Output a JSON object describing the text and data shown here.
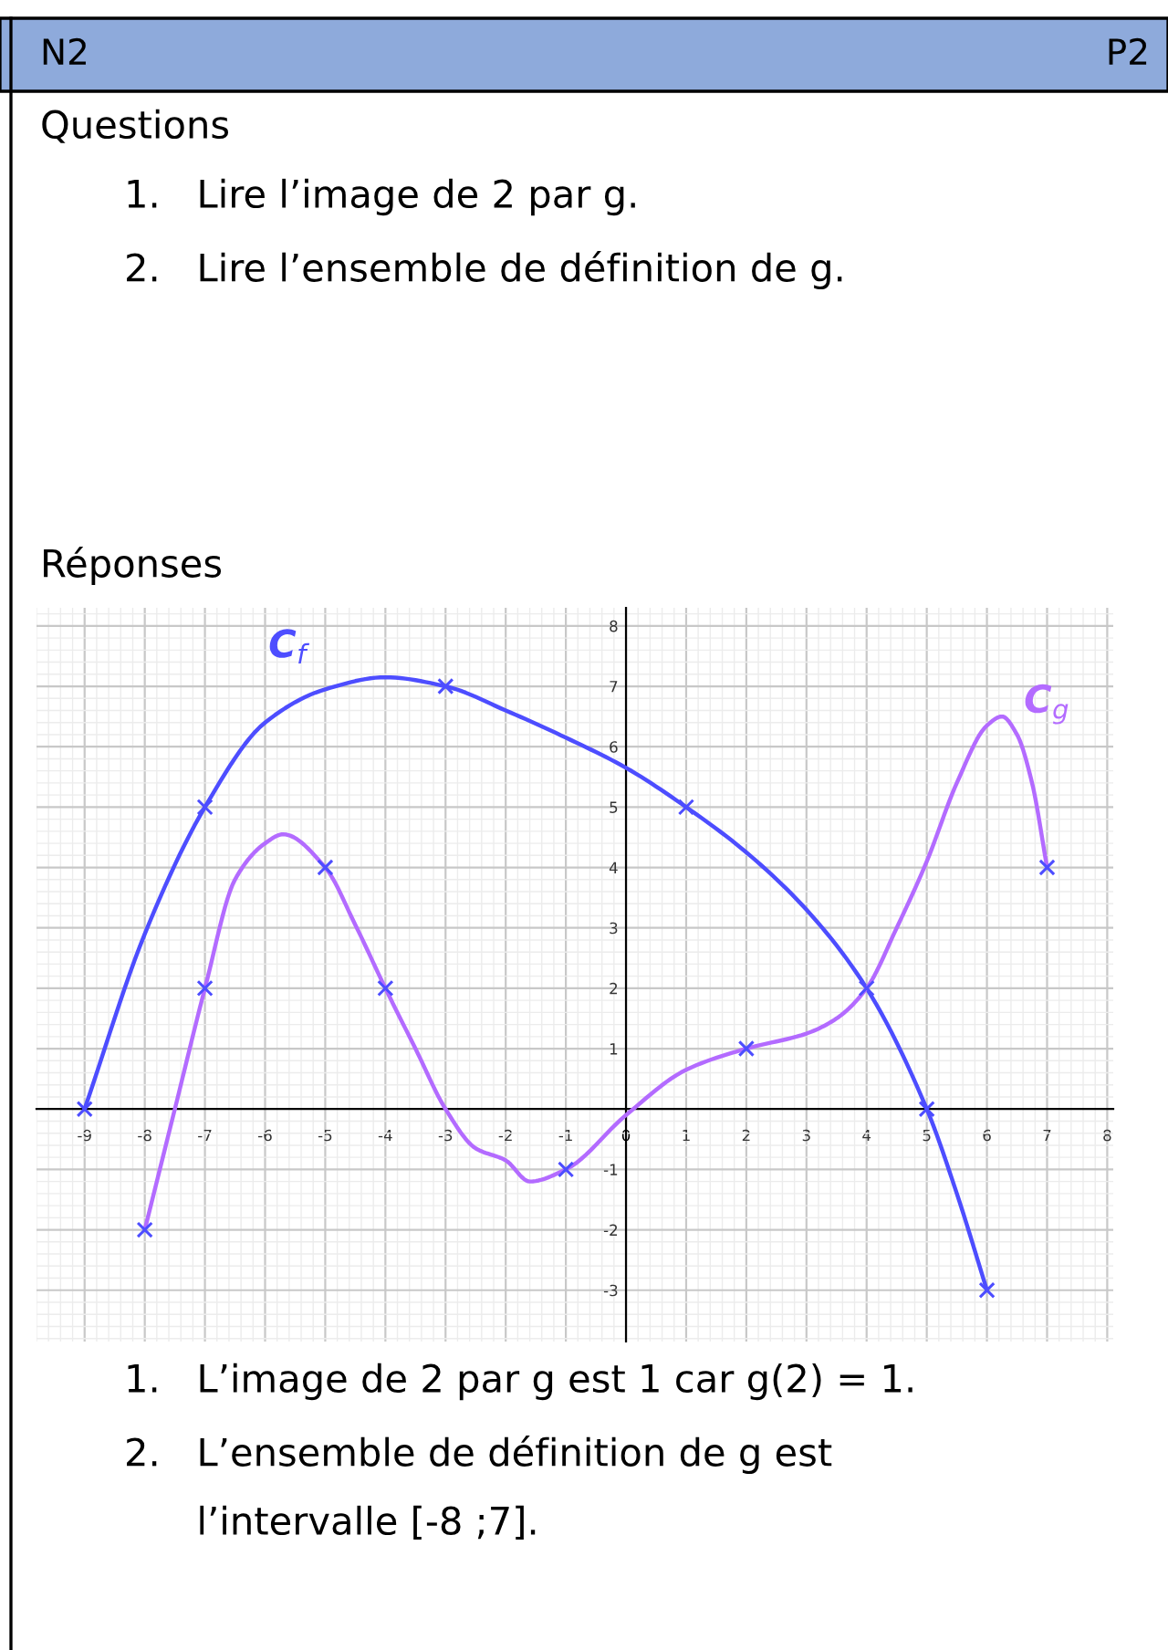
{
  "chart_data": {
    "type": "line",
    "series": [
      {
        "name": "C$_{f}$",
        "color": "#4d4dff",
        "x": [
          -9,
          -8,
          -7,
          -6,
          -5,
          -4,
          -3,
          -2,
          -1,
          0,
          1,
          2,
          3,
          4,
          5,
          5.5,
          6
        ],
        "values": [
          0,
          2.9,
          5,
          6.4,
          6.95,
          7.15,
          7,
          6.6,
          6.15,
          5.65,
          5,
          4.25,
          3.3,
          2,
          0,
          -1.4,
          -3
        ]
      },
      {
        "name": "C$_{g}$",
        "color": "#b36bff",
        "x": [
          -8,
          -7.5,
          -7,
          -6.5,
          -6,
          -5.7,
          -5,
          -4.5,
          -4,
          -3.5,
          -3,
          -2.5,
          -2,
          -1.6,
          -1,
          0,
          1,
          2,
          3,
          3.5,
          4,
          4.5,
          5,
          5.5,
          6,
          6.25,
          6.5,
          6.75,
          7
        ],
        "values": [
          -2,
          0,
          2,
          3.8,
          4.4,
          4.55,
          4,
          3.05,
          2,
          1,
          0,
          -0.65,
          -0.85,
          -1.2,
          -1,
          -0.1,
          0.65,
          1,
          1.25,
          1.5,
          2,
          3,
          4.1,
          5.4,
          6.35,
          6.5,
          6.2,
          5.4,
          4
        ]
      },
      {
        "type": "scatter",
        "marker": "cross",
        "color": "#4d4dff",
        "x": [
          -9,
          -7,
          -3,
          1,
          5,
          6
        ],
        "values": [
          0,
          5,
          7,
          5,
          0,
          -3
        ]
      },
      {
        "type": "scatter",
        "marker": "cross",
        "color": "#4d4dff",
        "x": [
          -8,
          -7,
          -5,
          -4,
          -1,
          2,
          4,
          7
        ],
        "values": [
          -2,
          2,
          4,
          2,
          -1,
          1,
          2,
          4
        ]
      }
    ],
    "xlim": [
      -9.8,
      8.1
    ],
    "ylim": [
      -3.85,
      8.3
    ],
    "xticks": [
      -9,
      -8,
      -7,
      -6,
      -5,
      -4,
      -3,
      -2,
      -1,
      0,
      1,
      2,
      3,
      4,
      5,
      6,
      7,
      8
    ],
    "yticks": [
      -3,
      -2,
      -1,
      1,
      2,
      3,
      4,
      5,
      6,
      7,
      8
    ],
    "grid": true,
    "annotations": [
      "N2",
      "P2",
      "Questions",
      "1.   Lire l’image de 2 par g.",
      "2.   Lire l’ensemble de définition de g.",
      "Réponses",
      "1.   L’image de 2 par g est 1 car g(2) = 1.",
      "2.   L’ensemble de définition de g est",
      "      l’intervalle [-8 ;7]."
    ]
  }
}
